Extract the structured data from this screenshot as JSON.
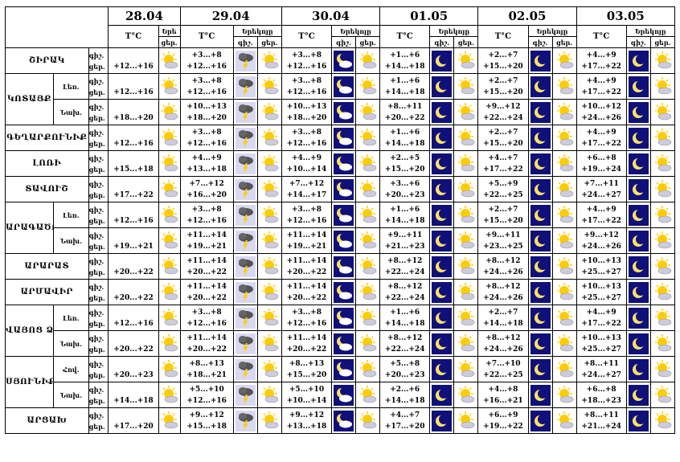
{
  "dates": [
    "28.04",
    "29.04",
    "30.04",
    "01.05",
    "02.05",
    "03.05"
  ],
  "temp_header": "T°C",
  "precip_header": "Երեկոյը",
  "precip_header_short": "Երե",
  "night_label": "գիշ.",
  "day_label": "ցեր.",
  "regions": [
    {
      "name": "ՇԻՐԱԿ",
      "rows": [
        {
          "zone": "",
          "day1": "+12...+16",
          "days": [
            {
              "night": "+3...+8",
              "day": "+12...+16",
              "icons": [
                "storm",
                "sun-cloud"
              ]
            },
            {
              "night": "+3...+8",
              "day": "+12...+16",
              "icons": [
                "moon-cloud",
                "sun-cloud"
              ]
            },
            {
              "night": "+1...+6",
              "day": "+14...+18",
              "icons": [
                "moon",
                "sun-cloud"
              ]
            },
            {
              "night": "+2...+7",
              "day": "+15...+20",
              "icons": [
                "moon",
                "sun-cloud"
              ]
            },
            {
              "night": "+4...+9",
              "day": "+17...+22",
              "icons": [
                "moon",
                "sun-cloud"
              ]
            }
          ]
        }
      ]
    },
    {
      "name": "ԿՈՏԱՅՔ",
      "rows": [
        {
          "zone": "Լեռ.",
          "day1": "+12...+16",
          "days": [
            {
              "night": "+3...+8",
              "day": "+12...+16",
              "icons": [
                "storm",
                "sun-cloud"
              ]
            },
            {
              "night": "+3...+8",
              "day": "+12...+16",
              "icons": [
                "moon-cloud",
                "sun-cloud"
              ]
            },
            {
              "night": "+1...+6",
              "day": "+14...+18",
              "icons": [
                "moon",
                "sun-cloud"
              ]
            },
            {
              "night": "+2...+7",
              "day": "+15...+20",
              "icons": [
                "moon",
                "sun-cloud"
              ]
            },
            {
              "night": "+4...+9",
              "day": "+17...+22",
              "icons": [
                "moon",
                "sun-cloud"
              ]
            }
          ]
        },
        {
          "zone": "Նախ.",
          "day1": "+18...+20",
          "days": [
            {
              "night": "+10...+13",
              "day": "+18...+20",
              "icons": [
                "storm",
                "sun-cloud"
              ]
            },
            {
              "night": "+10...+13",
              "day": "+18...+20",
              "icons": [
                "moon-cloud",
                "sun-cloud"
              ]
            },
            {
              "night": "+8...+11",
              "day": "+20...+22",
              "icons": [
                "moon",
                "sun-cloud"
              ]
            },
            {
              "night": "+9...+12",
              "day": "+22...+24",
              "icons": [
                "moon",
                "sun-cloud"
              ]
            },
            {
              "night": "+10...+12",
              "day": "+24...+26",
              "icons": [
                "moon",
                "sun-cloud"
              ]
            }
          ]
        }
      ]
    },
    {
      "name": "ԳԵՂԱՐՔՈՒՆԻՔ",
      "rows": [
        {
          "zone": "",
          "day1": "+12...+16",
          "days": [
            {
              "night": "+3...+8",
              "day": "+12...+16",
              "icons": [
                "storm",
                "sun-cloud"
              ]
            },
            {
              "night": "+3...+8",
              "day": "+12...+16",
              "icons": [
                "moon-cloud",
                "sun-cloud"
              ]
            },
            {
              "night": "+1...+6",
              "day": "+14...+18",
              "icons": [
                "moon",
                "sun-cloud"
              ]
            },
            {
              "night": "+2...+7",
              "day": "+15...+20",
              "icons": [
                "moon",
                "sun-cloud"
              ]
            },
            {
              "night": "+4...+9",
              "day": "+17...+22",
              "icons": [
                "moon",
                "sun-cloud"
              ]
            }
          ]
        }
      ]
    },
    {
      "name": "ԼՈՌԻ",
      "rows": [
        {
          "zone": "",
          "day1": "+15...+18",
          "days": [
            {
              "night": "+4...+9",
              "day": "+13...+18",
              "icons": [
                "storm",
                "sun-cloud"
              ]
            },
            {
              "night": "+4...+9",
              "day": "+10...+14",
              "icons": [
                "moon-cloud",
                "sun-cloud"
              ]
            },
            {
              "night": "+2...+5",
              "day": "+15...+20",
              "icons": [
                "moon",
                "sun-cloud"
              ]
            },
            {
              "night": "+4...+7",
              "day": "+17...+22",
              "icons": [
                "moon",
                "sun-cloud"
              ]
            },
            {
              "night": "+6...+8",
              "day": "+19...+24",
              "icons": [
                "moon",
                "sun-cloud"
              ]
            }
          ]
        }
      ]
    },
    {
      "name": "ՏԱՎՈՒՇ",
      "rows": [
        {
          "zone": "",
          "day1": "+17...+22",
          "days": [
            {
              "night": "+7...+12",
              "day": "+16...+20",
              "icons": [
                "storm",
                "sun-cloud"
              ]
            },
            {
              "night": "+7...+12",
              "day": "+14...+17",
              "icons": [
                "moon-cloud",
                "sun-cloud"
              ]
            },
            {
              "night": "+3...+6",
              "day": "+20...+23",
              "icons": [
                "moon",
                "sun-cloud"
              ]
            },
            {
              "night": "+5...+9",
              "day": "+22...+25",
              "icons": [
                "moon",
                "sun-cloud"
              ]
            },
            {
              "night": "+7...+11",
              "day": "+24...+27",
              "icons": [
                "moon",
                "sun-cloud"
              ]
            }
          ]
        }
      ]
    },
    {
      "name": "ԱՐԱԳԱԾՈՏՆ",
      "rows": [
        {
          "zone": "Լեռ.",
          "day1": "+12...+16",
          "days": [
            {
              "night": "+3...+8",
              "day": "+12...+16",
              "icons": [
                "storm",
                "sun-cloud"
              ]
            },
            {
              "night": "+3...+8",
              "day": "+12...+16",
              "icons": [
                "moon-cloud",
                "sun-cloud"
              ]
            },
            {
              "night": "+1...+6",
              "day": "+14...+18",
              "icons": [
                "moon",
                "sun-cloud"
              ]
            },
            {
              "night": "+2...+7",
              "day": "+15...+20",
              "icons": [
                "moon",
                "sun-cloud"
              ]
            },
            {
              "night": "+4...+9",
              "day": "+17...+22",
              "icons": [
                "moon",
                "sun-cloud"
              ]
            }
          ]
        },
        {
          "zone": "Նախ.",
          "day1": "+19...+21",
          "days": [
            {
              "night": "+11...+14",
              "day": "+19...+21",
              "icons": [
                "storm",
                "sun-cloud"
              ]
            },
            {
              "night": "+11...+14",
              "day": "+19...+21",
              "icons": [
                "moon-cloud",
                "sun-cloud"
              ]
            },
            {
              "night": "+9...+11",
              "day": "+21...+23",
              "icons": [
                "moon",
                "sun-cloud"
              ]
            },
            {
              "night": "+9...+11",
              "day": "+23...+25",
              "icons": [
                "moon",
                "sun-cloud"
              ]
            },
            {
              "night": "+9...+12",
              "day": "+24...+26",
              "icons": [
                "moon",
                "sun-cloud"
              ]
            }
          ]
        }
      ]
    },
    {
      "name": "ԱՐԱՐԱՏ",
      "rows": [
        {
          "zone": "",
          "day1": "+20...+22",
          "days": [
            {
              "night": "+11...+14",
              "day": "+20...+22",
              "icons": [
                "storm",
                "sun-cloud"
              ]
            },
            {
              "night": "+11...+14",
              "day": "+20...+22",
              "icons": [
                "moon-cloud",
                "sun-cloud"
              ]
            },
            {
              "night": "+8...+12",
              "day": "+22...+24",
              "icons": [
                "moon",
                "sun-cloud"
              ]
            },
            {
              "night": "+8...+12",
              "day": "+24...+26",
              "icons": [
                "moon",
                "sun-cloud"
              ]
            },
            {
              "night": "+10...+13",
              "day": "+25...+27",
              "icons": [
                "moon",
                "sun-cloud"
              ]
            }
          ]
        }
      ]
    },
    {
      "name": "ԱՐՄԱՎԻՐ",
      "rows": [
        {
          "zone": "",
          "day1": "+20...+22",
          "days": [
            {
              "night": "+11...+14",
              "day": "+20...+22",
              "icons": [
                "storm",
                "sun-cloud"
              ]
            },
            {
              "night": "+11...+14",
              "day": "+20...+22",
              "icons": [
                "moon-cloud",
                "sun-cloud"
              ]
            },
            {
              "night": "+8...+12",
              "day": "+22...+24",
              "icons": [
                "moon",
                "sun-cloud"
              ]
            },
            {
              "night": "+8...+12",
              "day": "+24...+26",
              "icons": [
                "moon",
                "sun-cloud"
              ]
            },
            {
              "night": "+10...+13",
              "day": "+25...+27",
              "icons": [
                "moon",
                "sun-cloud"
              ]
            }
          ]
        }
      ]
    },
    {
      "name": "ՎԱՅՈՑ ՁՈՐ",
      "rows": [
        {
          "zone": "Լեռ.",
          "day1": "+12...+16",
          "days": [
            {
              "night": "+3...+8",
              "day": "+12...+16",
              "icons": [
                "storm",
                "sun-cloud"
              ]
            },
            {
              "night": "+3...+8",
              "day": "+12...+16",
              "icons": [
                "moon-cloud",
                "sun-cloud"
              ]
            },
            {
              "night": "+1...+6",
              "day": "+14...+18",
              "icons": [
                "moon",
                "sun-cloud"
              ]
            },
            {
              "night": "+2...+7",
              "day": "+14...+18",
              "icons": [
                "moon",
                "sun-cloud"
              ]
            },
            {
              "night": "+4...+9",
              "day": "+17...+22",
              "icons": [
                "moon",
                "sun-cloud"
              ]
            }
          ]
        },
        {
          "zone": "Նախ.",
          "day1": "+20...+22",
          "days": [
            {
              "night": "+11...+14",
              "day": "+20...+22",
              "icons": [
                "storm",
                "sun-cloud"
              ]
            },
            {
              "night": "+11...+14",
              "day": "+20...+22",
              "icons": [
                "moon-cloud",
                "sun-cloud"
              ]
            },
            {
              "night": "+8...+12",
              "day": "+22...+24",
              "icons": [
                "moon",
                "sun-cloud"
              ]
            },
            {
              "night": "+8...+12",
              "day": "+24...+26",
              "icons": [
                "moon",
                "sun-cloud"
              ]
            },
            {
              "night": "+10...+13",
              "day": "+25...+27",
              "icons": [
                "moon",
                "sun-cloud"
              ]
            }
          ]
        }
      ]
    },
    {
      "name": "ՍՅՈՒՆԻՔ",
      "rows": [
        {
          "zone": "Հով.",
          "day1": "+20...+23",
          "days": [
            {
              "night": "+8...+13",
              "day": "+18...+21",
              "icons": [
                "storm",
                "sun-cloud"
              ]
            },
            {
              "night": "+8...+13",
              "day": "+15...+20",
              "icons": [
                "moon-cloud",
                "sun-cloud"
              ]
            },
            {
              "night": "+5...+8",
              "day": "+20...+23",
              "icons": [
                "moon",
                "sun-cloud"
              ]
            },
            {
              "night": "+7...+10",
              "day": "+22...+25",
              "icons": [
                "moon",
                "sun-cloud"
              ]
            },
            {
              "night": "+8...+11",
              "day": "+24...+27",
              "icons": [
                "moon",
                "sun-cloud"
              ]
            }
          ]
        },
        {
          "zone": "Նախ.",
          "day1": "+14...+18",
          "days": [
            {
              "night": "+5...+10",
              "day": "+12...+16",
              "icons": [
                "storm",
                "sun-cloud"
              ]
            },
            {
              "night": "+5...+10",
              "day": "+10...+14",
              "icons": [
                "moon-cloud",
                "sun-cloud"
              ]
            },
            {
              "night": "+2...+6",
              "day": "+14...+18",
              "icons": [
                "moon",
                "sun-cloud"
              ]
            },
            {
              "night": "+4...+8",
              "day": "+16...+21",
              "icons": [
                "moon",
                "sun-cloud"
              ]
            },
            {
              "night": "+6...+8",
              "day": "+18...+23",
              "icons": [
                "moon",
                "sun-cloud"
              ]
            }
          ]
        }
      ]
    },
    {
      "name": "ԱՐՑԱԽ",
      "rows": [
        {
          "zone": "",
          "day1": "+17...+20",
          "days": [
            {
              "night": "+9...+12",
              "day": "+15...+18",
              "icons": [
                "storm",
                "sun-cloud"
              ]
            },
            {
              "night": "+9...+12",
              "day": "+13...+18",
              "icons": [
                "moon-cloud",
                "sun-cloud"
              ]
            },
            {
              "night": "+4...+7",
              "day": "+17...+20",
              "icons": [
                "moon",
                "sun-cloud"
              ]
            },
            {
              "night": "+6...+9",
              "day": "+19...+22",
              "icons": [
                "moon",
                "sun-cloud"
              ]
            },
            {
              "night": "+8...+11",
              "day": "+21...+24",
              "icons": [
                "moon",
                "sun-cloud"
              ]
            }
          ]
        }
      ]
    }
  ],
  "colors": {
    "storm_bg": "#d8d8f0",
    "night_bg": "#10107a",
    "sun": "#ffcc00",
    "moon": "#ffe066",
    "cloud": "#ffffff"
  }
}
